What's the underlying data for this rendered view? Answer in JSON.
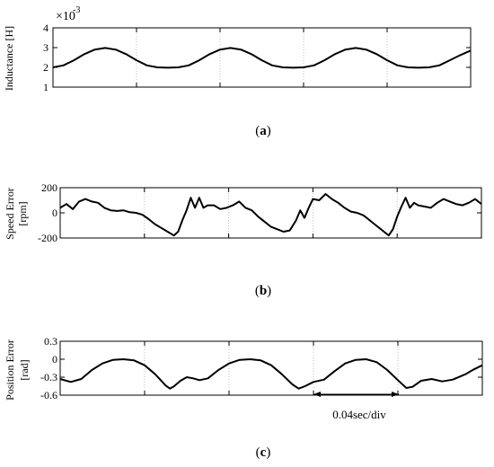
{
  "chart_data": [
    {
      "type": "line",
      "panel_label": "a",
      "ylabel": "Inductance [H]",
      "exponent_label": "×10",
      "exponent_power": "-3",
      "ylim": [
        1,
        4
      ],
      "yticks": [
        "4",
        "3",
        "2",
        "1"
      ],
      "xlim": [
        0,
        0.2
      ],
      "x_gridlines": [
        0.04,
        0.08,
        0.12,
        0.16
      ],
      "grid": "vertical dotted",
      "series": [
        {
          "values": [
            [
              0.0,
              2.0
            ],
            [
              0.005,
              2.1
            ],
            [
              0.01,
              2.36
            ],
            [
              0.015,
              2.67
            ],
            [
              0.02,
              2.9
            ],
            [
              0.025,
              2.98
            ],
            [
              0.03,
              2.9
            ],
            [
              0.035,
              2.67
            ],
            [
              0.04,
              2.36
            ],
            [
              0.045,
              2.1
            ],
            [
              0.05,
              2.0
            ],
            [
              0.055,
              1.98
            ],
            [
              0.06,
              2.0
            ],
            [
              0.065,
              2.1
            ],
            [
              0.07,
              2.36
            ],
            [
              0.075,
              2.67
            ],
            [
              0.08,
              2.9
            ],
            [
              0.085,
              2.98
            ],
            [
              0.09,
              2.9
            ],
            [
              0.095,
              2.67
            ],
            [
              0.1,
              2.36
            ],
            [
              0.105,
              2.1
            ],
            [
              0.11,
              2.0
            ],
            [
              0.115,
              1.98
            ],
            [
              0.12,
              2.0
            ],
            [
              0.125,
              2.1
            ],
            [
              0.13,
              2.36
            ],
            [
              0.135,
              2.67
            ],
            [
              0.14,
              2.9
            ],
            [
              0.145,
              2.98
            ],
            [
              0.15,
              2.9
            ],
            [
              0.155,
              2.67
            ],
            [
              0.16,
              2.36
            ],
            [
              0.165,
              2.1
            ],
            [
              0.17,
              2.0
            ],
            [
              0.175,
              1.98
            ],
            [
              0.18,
              2.0
            ],
            [
              0.185,
              2.1
            ],
            [
              0.19,
              2.36
            ],
            [
              0.195,
              2.62
            ],
            [
              0.2,
              2.85
            ]
          ]
        }
      ]
    },
    {
      "type": "line",
      "panel_label": "b",
      "ylabel": [
        "Speed Error",
        "[rpm]"
      ],
      "ylim": [
        -200,
        200
      ],
      "yticks": [
        "200",
        "0",
        "-200"
      ],
      "xlim": [
        0,
        0.2
      ],
      "x_gridlines": [
        0.04,
        0.08,
        0.12,
        0.16
      ],
      "grid": "vertical dotted",
      "series": [
        {
          "values": [
            [
              0.0,
              40
            ],
            [
              0.003,
              70
            ],
            [
              0.006,
              30
            ],
            [
              0.009,
              90
            ],
            [
              0.012,
              110
            ],
            [
              0.015,
              90
            ],
            [
              0.018,
              80
            ],
            [
              0.021,
              40
            ],
            [
              0.024,
              20
            ],
            [
              0.027,
              15
            ],
            [
              0.03,
              20
            ],
            [
              0.033,
              5
            ],
            [
              0.036,
              0
            ],
            [
              0.039,
              -15
            ],
            [
              0.042,
              -50
            ],
            [
              0.045,
              -90
            ],
            [
              0.048,
              -120
            ],
            [
              0.051,
              -150
            ],
            [
              0.054,
              -180
            ],
            [
              0.056,
              -150
            ],
            [
              0.058,
              -60
            ],
            [
              0.06,
              20
            ],
            [
              0.062,
              120
            ],
            [
              0.064,
              40
            ],
            [
              0.066,
              120
            ],
            [
              0.068,
              40
            ],
            [
              0.07,
              60
            ],
            [
              0.073,
              60
            ],
            [
              0.076,
              30
            ],
            [
              0.079,
              40
            ],
            [
              0.082,
              60
            ],
            [
              0.085,
              90
            ],
            [
              0.088,
              40
            ],
            [
              0.091,
              20
            ],
            [
              0.094,
              -30
            ],
            [
              0.097,
              -70
            ],
            [
              0.1,
              -110
            ],
            [
              0.103,
              -130
            ],
            [
              0.106,
              -150
            ],
            [
              0.109,
              -140
            ],
            [
              0.112,
              -60
            ],
            [
              0.114,
              20
            ],
            [
              0.116,
              -40
            ],
            [
              0.118,
              40
            ],
            [
              0.12,
              110
            ],
            [
              0.123,
              100
            ],
            [
              0.126,
              150
            ],
            [
              0.129,
              110
            ],
            [
              0.132,
              80
            ],
            [
              0.135,
              40
            ],
            [
              0.138,
              10
            ],
            [
              0.141,
              0
            ],
            [
              0.144,
              -20
            ],
            [
              0.147,
              -60
            ],
            [
              0.15,
              -100
            ],
            [
              0.153,
              -140
            ],
            [
              0.156,
              -180
            ],
            [
              0.158,
              -130
            ],
            [
              0.16,
              -30
            ],
            [
              0.162,
              50
            ],
            [
              0.164,
              120
            ],
            [
              0.166,
              40
            ],
            [
              0.168,
              80
            ],
            [
              0.17,
              60
            ],
            [
              0.173,
              50
            ],
            [
              0.176,
              40
            ],
            [
              0.179,
              80
            ],
            [
              0.182,
              110
            ],
            [
              0.185,
              90
            ],
            [
              0.188,
              70
            ],
            [
              0.191,
              60
            ],
            [
              0.194,
              80
            ],
            [
              0.197,
              110
            ],
            [
              0.2,
              70
            ]
          ]
        }
      ]
    },
    {
      "type": "line",
      "panel_label": "c",
      "ylabel": [
        "Position Error",
        "[rad]"
      ],
      "ylim": [
        -0.6,
        0.3
      ],
      "yticks": [
        "0.3",
        "0",
        "-0.3",
        "-0.6"
      ],
      "xlim": [
        0,
        0.2
      ],
      "x_gridlines": [
        0.04,
        0.08,
        0.12,
        0.16
      ],
      "grid": "vertical dotted",
      "annotation": "0.04sec/div",
      "series": [
        {
          "values": [
            [
              0.0,
              -0.33
            ],
            [
              0.005,
              -0.38
            ],
            [
              0.01,
              -0.33
            ],
            [
              0.015,
              -0.18
            ],
            [
              0.02,
              -0.07
            ],
            [
              0.025,
              -0.01
            ],
            [
              0.03,
              0.0
            ],
            [
              0.035,
              -0.02
            ],
            [
              0.04,
              -0.1
            ],
            [
              0.045,
              -0.25
            ],
            [
              0.05,
              -0.44
            ],
            [
              0.052,
              -0.49
            ],
            [
              0.054,
              -0.45
            ],
            [
              0.057,
              -0.36
            ],
            [
              0.06,
              -0.3
            ],
            [
              0.063,
              -0.32
            ],
            [
              0.066,
              -0.35
            ],
            [
              0.07,
              -0.32
            ],
            [
              0.075,
              -0.18
            ],
            [
              0.08,
              -0.07
            ],
            [
              0.085,
              -0.01
            ],
            [
              0.09,
              0.0
            ],
            [
              0.095,
              -0.02
            ],
            [
              0.1,
              -0.1
            ],
            [
              0.105,
              -0.25
            ],
            [
              0.11,
              -0.42
            ],
            [
              0.113,
              -0.49
            ],
            [
              0.116,
              -0.45
            ],
            [
              0.12,
              -0.38
            ],
            [
              0.125,
              -0.34
            ],
            [
              0.13,
              -0.2
            ],
            [
              0.135,
              -0.07
            ],
            [
              0.14,
              -0.01
            ],
            [
              0.145,
              0.0
            ],
            [
              0.15,
              -0.05
            ],
            [
              0.155,
              -0.18
            ],
            [
              0.16,
              -0.35
            ],
            [
              0.164,
              -0.48
            ],
            [
              0.167,
              -0.46
            ],
            [
              0.171,
              -0.36
            ],
            [
              0.176,
              -0.33
            ],
            [
              0.181,
              -0.37
            ],
            [
              0.186,
              -0.34
            ],
            [
              0.192,
              -0.25
            ],
            [
              0.196,
              -0.17
            ],
            [
              0.2,
              -0.1
            ]
          ]
        }
      ]
    }
  ]
}
